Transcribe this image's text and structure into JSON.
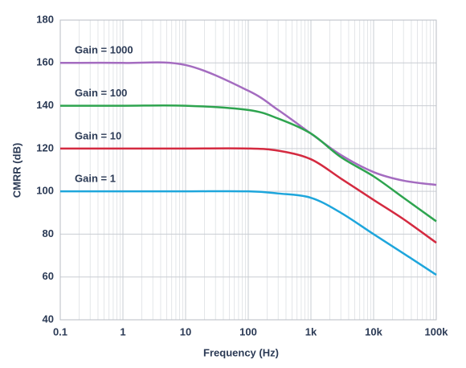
{
  "chart_data": {
    "type": "line",
    "xlabel": "Frequency (Hz)",
    "ylabel": "CMRR (dB)",
    "x": [
      0.1,
      1,
      10,
      100,
      300,
      1000,
      3000,
      10000,
      30000,
      100000
    ],
    "series": [
      {
        "name": "Gain = 1000",
        "color": "#a46cc0",
        "values": [
          160,
          160,
          159,
          147,
          138,
          127,
          117,
          109,
          105,
          103
        ]
      },
      {
        "name": "Gain = 100",
        "color": "#2ea44f",
        "values": [
          140,
          140,
          140,
          138,
          134,
          127,
          116,
          107,
          97,
          86
        ]
      },
      {
        "name": "Gain = 10",
        "color": "#d42a40",
        "values": [
          120,
          120,
          120,
          120,
          119,
          115,
          106,
          96,
          87,
          76
        ]
      },
      {
        "name": "Gain = 1",
        "color": "#1ea6dc",
        "values": [
          100,
          100,
          100,
          100,
          99,
          97,
          90,
          80,
          71,
          61
        ]
      }
    ],
    "xscale": "log",
    "xlim": [
      0.1,
      100000
    ],
    "xticks": [
      0.1,
      1,
      10,
      100,
      {
        "value": 1000,
        "label": "1k"
      },
      {
        "value": 10000,
        "label": "10k"
      },
      {
        "value": 100000,
        "label": "100k"
      }
    ],
    "ylim": [
      40,
      180
    ],
    "yticks": [
      40,
      60,
      80,
      100,
      120,
      140,
      160,
      180
    ],
    "grid": true
  }
}
